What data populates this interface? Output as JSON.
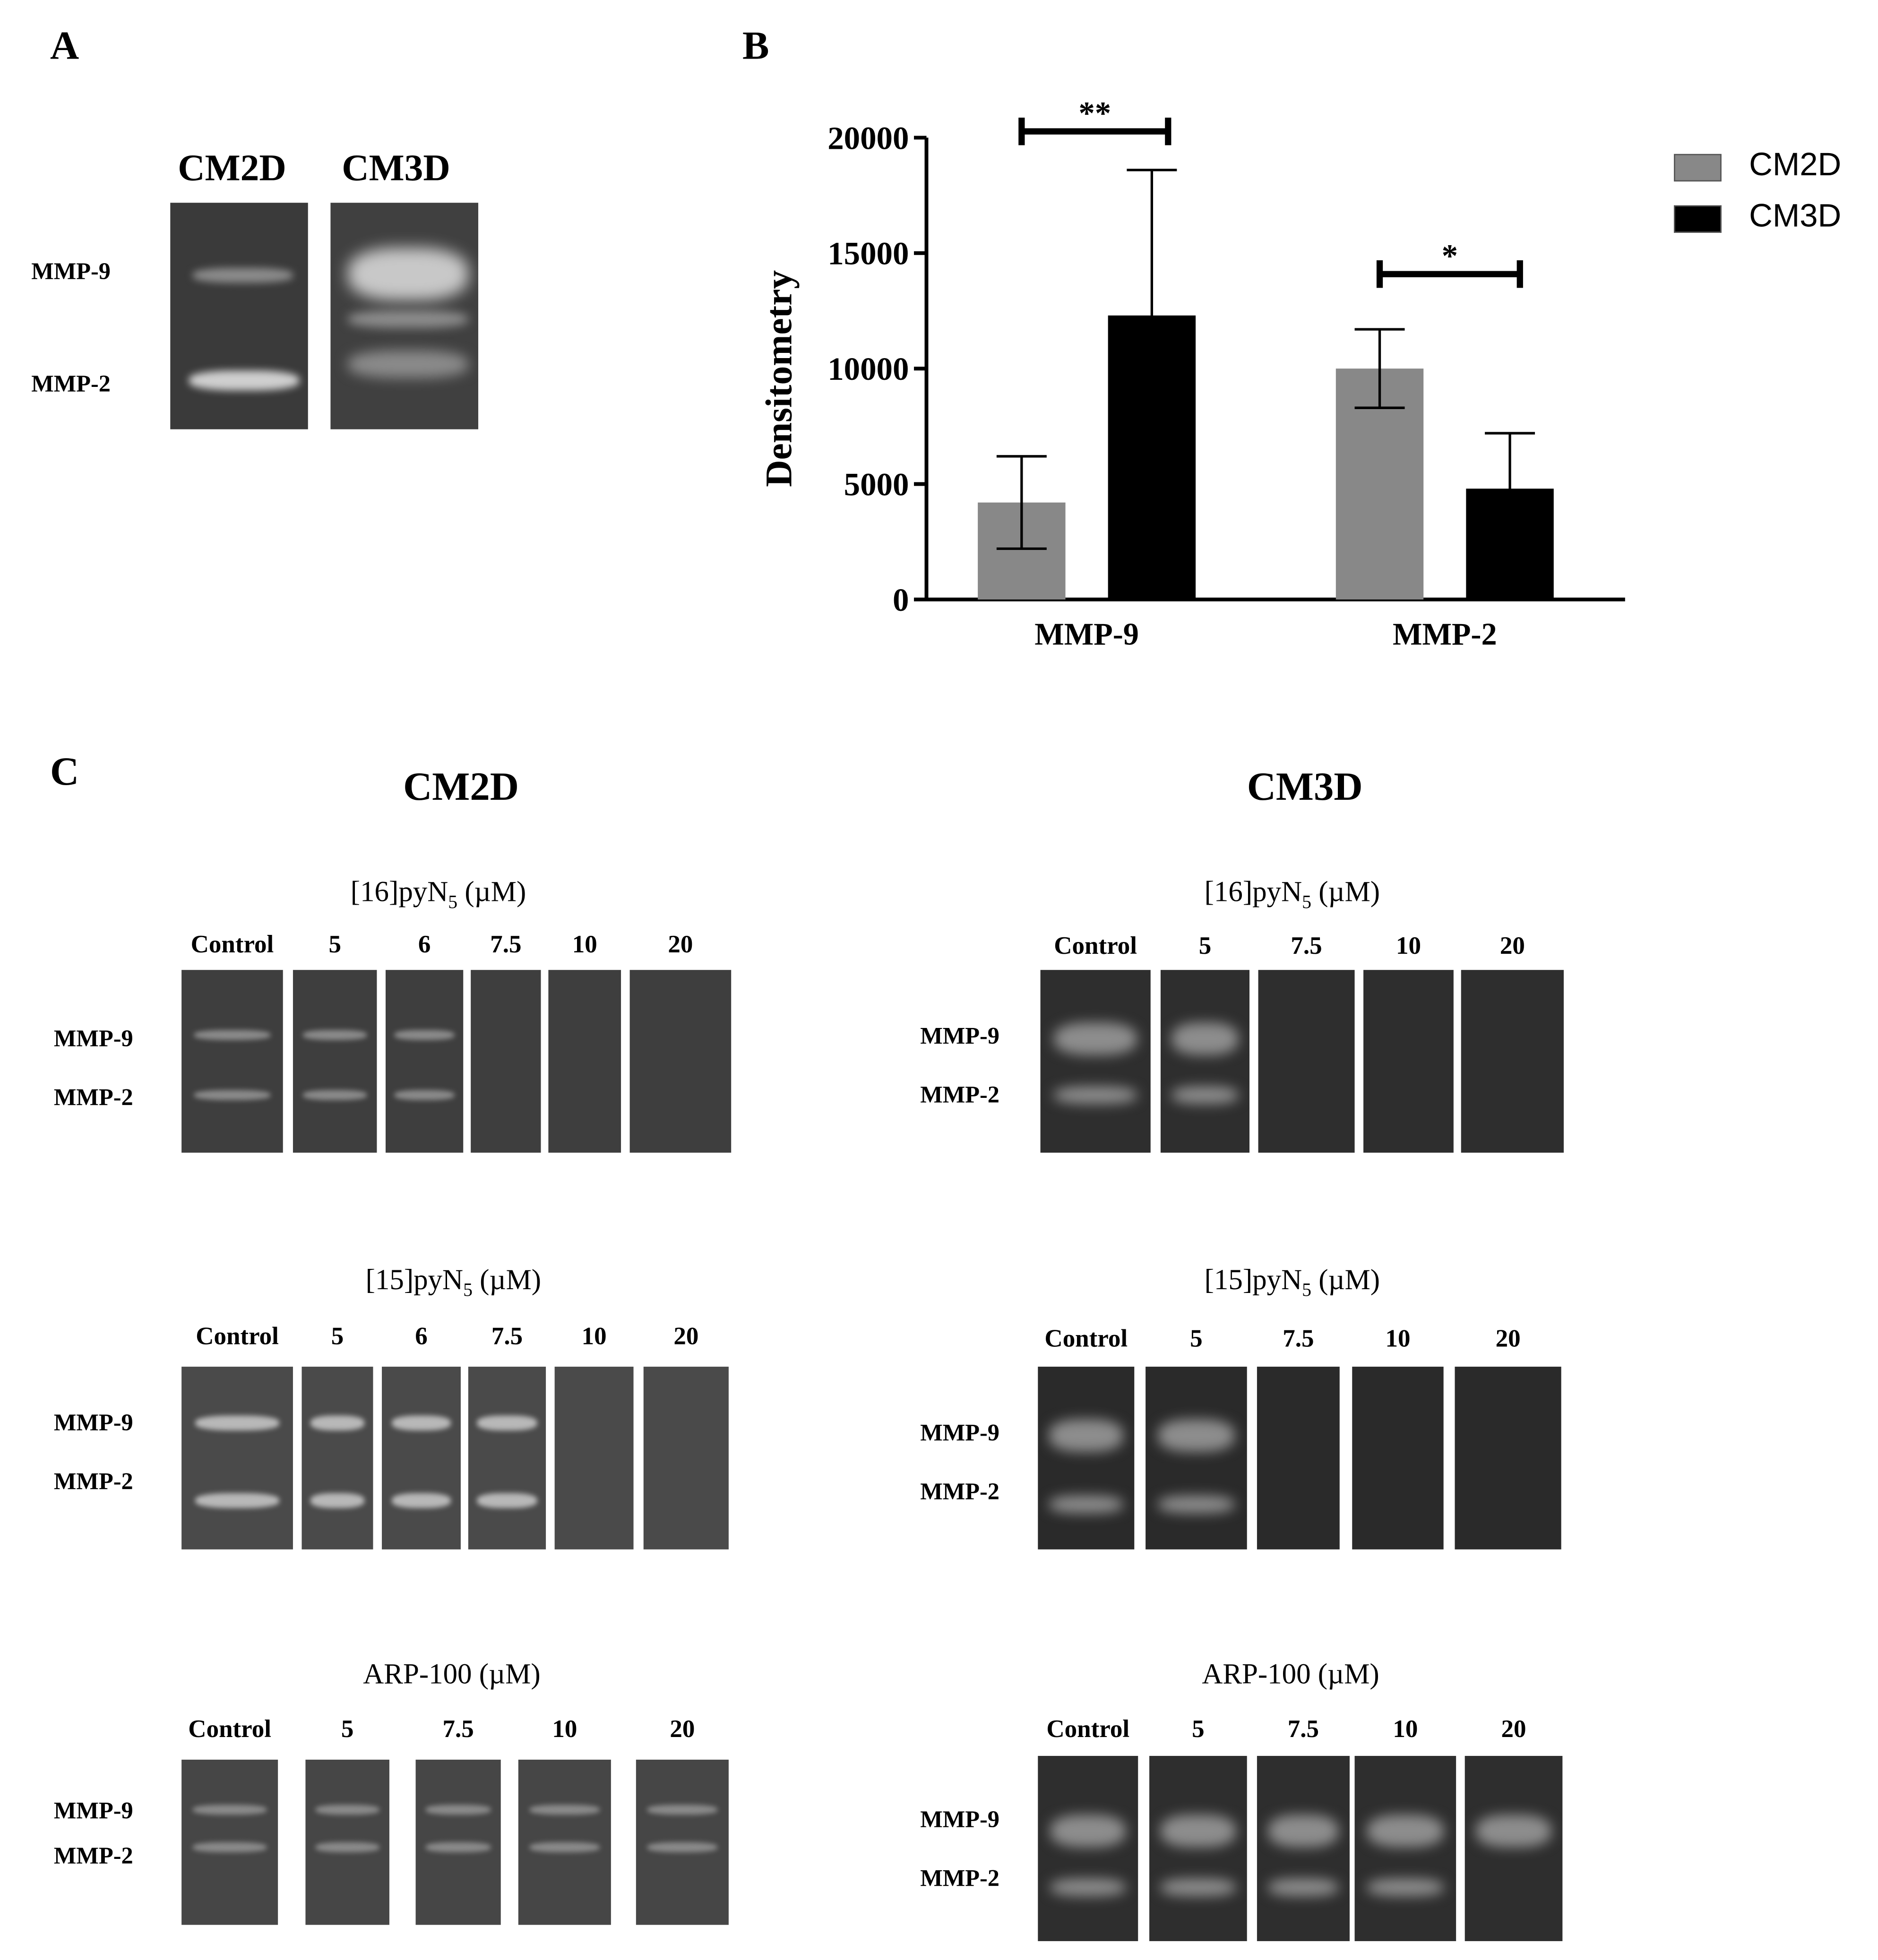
{
  "panel_letters": {
    "A": "A",
    "B": "B",
    "C": "C"
  },
  "panelA": {
    "lane_labels": [
      "CM2D",
      "CM3D"
    ],
    "band_labels": [
      "MMP-9",
      "MMP-2"
    ]
  },
  "chart_data": {
    "type": "bar",
    "title": "",
    "xlabel": "",
    "ylabel": "Densitometry",
    "categories": [
      "MMP-9",
      "MMP-2"
    ],
    "ylim": [
      0,
      20000
    ],
    "yticks": [
      "0",
      "5000",
      "10000",
      "15000",
      "20000"
    ],
    "series": [
      {
        "name": "CM2D",
        "color": "#888888",
        "values": [
          4200,
          10000
        ],
        "errors": [
          2000,
          1700
        ]
      },
      {
        "name": "CM3D",
        "color": "#000000",
        "values": [
          12300,
          4800
        ],
        "errors": [
          6300,
          2400
        ]
      }
    ],
    "significance": [
      {
        "category": "MMP-9",
        "label": "**"
      },
      {
        "category": "MMP-2",
        "label": "*"
      }
    ],
    "legend_position": "top-right",
    "grid": false
  },
  "panelC": {
    "col_titles": [
      "CM2D",
      "CM3D"
    ],
    "band_labels": [
      "MMP-9",
      "MMP-2"
    ],
    "groups": [
      {
        "compound": "[16]pyN",
        "sub": "5",
        "unit": "(µM)",
        "left_lanes": [
          "Control",
          "5",
          "6",
          "7.5",
          "10",
          "20"
        ],
        "right_lanes": [
          "Control",
          "5",
          "7.5",
          "10",
          "20"
        ]
      },
      {
        "compound": "[15]pyN",
        "sub": "5",
        "unit": "(µM)",
        "left_lanes": [
          "Control",
          "5",
          "6",
          "7.5",
          "10",
          "20"
        ],
        "right_lanes": [
          "Control",
          "5",
          "7.5",
          "10",
          "20"
        ]
      },
      {
        "compound": "ARP-100",
        "sub": "",
        "unit": "(µM)",
        "left_lanes": [
          "Control",
          "5",
          "7.5",
          "10",
          "20"
        ],
        "right_lanes": [
          "Control",
          "5",
          "7.5",
          "10",
          "20"
        ]
      }
    ]
  }
}
